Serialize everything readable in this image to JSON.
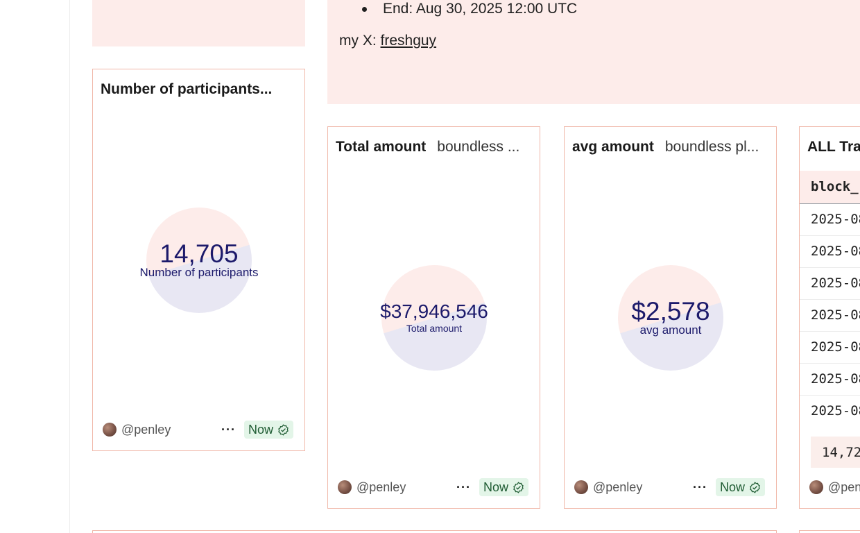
{
  "description": {
    "bullet_end": "End: Aug 30, 2025 12:00 UTC",
    "x_label": "my X: ",
    "x_handle": "freshguy"
  },
  "cards": {
    "participants": {
      "title": "Number of participants...",
      "value": "14,705",
      "label": "Number of participants",
      "author": "@penley",
      "more": "···",
      "status": "Now"
    },
    "total": {
      "title": "Total amount",
      "subtitle": "boundless ...",
      "value": "$37,946,546",
      "label": "Total amount",
      "author": "@penley",
      "more": "···",
      "status": "Now"
    },
    "avg": {
      "title": "avg amount",
      "subtitle": "boundless pl...",
      "value": "$2,578",
      "label": "avg amount",
      "author": "@penley",
      "more": "···",
      "status": "Now"
    },
    "transactions": {
      "title": "ALL Tra",
      "column_header": "block_",
      "rows": [
        "2025-08",
        "2025-08",
        "2025-08",
        "2025-08",
        "2025-08",
        "2025-08",
        "2025-08"
      ],
      "row_count": "14,72",
      "author": "@pen"
    }
  },
  "colors": {
    "card_border": "#f0b7a8",
    "pink_fill": "#fdecea",
    "counter_text": "#1c1a6b",
    "badge_bg": "#e3f5e8"
  }
}
